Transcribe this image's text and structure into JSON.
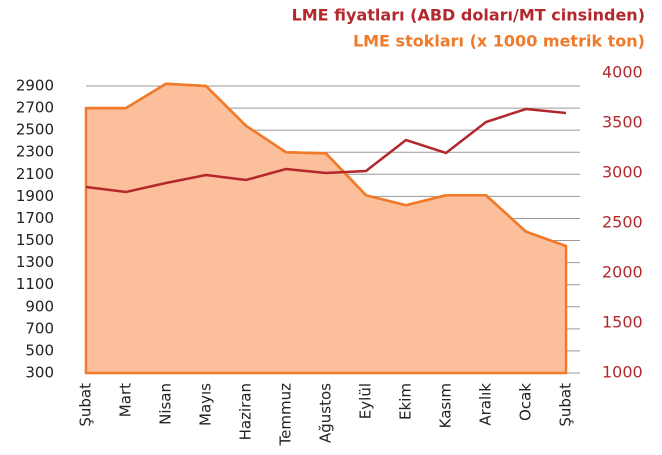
{
  "chart_data": {
    "type": "line",
    "categories": [
      "Şubat",
      "Mart",
      "Nisan",
      "Mayıs",
      "Haziran",
      "Temmuz",
      "Ağustos",
      "Eylül",
      "Ekim",
      "Kasım",
      "Aralık",
      "Ocak",
      "Şubat"
    ],
    "series": [
      {
        "name": "LME fiyatları (ABD doları/MT cinsinden)",
        "color": "#b3282d",
        "axis": "y2",
        "values": [
          2860,
          2810,
          2900,
          2980,
          2930,
          3040,
          3000,
          3020,
          3330,
          3200,
          3510,
          3640,
          3600
        ]
      },
      {
        "name": "LME stokları (x 1000 metrik ton)",
        "color": "#f07a2a",
        "fill": "#fbbf9b",
        "area": true,
        "values": [
          2700,
          2700,
          2920,
          2900,
          2540,
          2300,
          2290,
          1910,
          1820,
          1910,
          1910,
          1580,
          1450
        ]
      }
    ],
    "ylim": [
      300,
      2900
    ],
    "yticks": [
      300,
      500,
      700,
      900,
      1100,
      1300,
      1500,
      1700,
      1900,
      2100,
      2300,
      2500,
      2700,
      2900
    ],
    "y2lim": [
      1000,
      4000
    ],
    "y2ticks": [
      1000,
      1500,
      2000,
      2500,
      3000,
      3500,
      4000
    ],
    "y2color": "#b3282d",
    "grid": true
  }
}
